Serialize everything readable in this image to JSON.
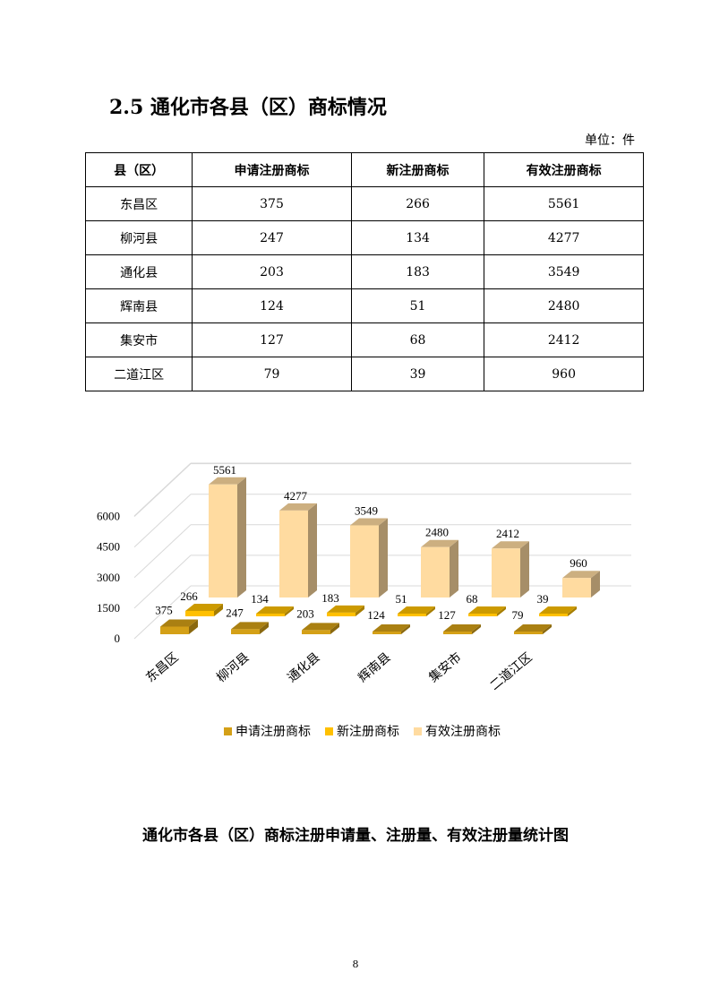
{
  "title": "2.5  通化市各县（区）商标情况",
  "unit": "单位：件",
  "table": {
    "headers": [
      "县（区）",
      "申请注册商标",
      "新注册商标",
      "有效注册商标"
    ],
    "rows": [
      [
        "东昌区",
        "375",
        "266",
        "5561"
      ],
      [
        "柳河县",
        "247",
        "134",
        "4277"
      ],
      [
        "通化县",
        "203",
        "183",
        "3549"
      ],
      [
        "辉南县",
        "124",
        "51",
        "2480"
      ],
      [
        "集安市",
        "127",
        "68",
        "2412"
      ],
      [
        "二道江区",
        "79",
        "39",
        "960"
      ]
    ]
  },
  "chart_data": {
    "type": "bar",
    "subtype": "3d-clustered-column",
    "categories": [
      "东昌区",
      "柳河县",
      "通化县",
      "辉南县",
      "集安市",
      "二道江区"
    ],
    "series": [
      {
        "name": "申请注册商标",
        "values": [
          375,
          247,
          203,
          124,
          127,
          79
        ],
        "color": "#D4A017"
      },
      {
        "name": "新注册商标",
        "values": [
          266,
          134,
          183,
          51,
          68,
          39
        ],
        "color": "#FFC000"
      },
      {
        "name": "有效注册商标",
        "values": [
          5561,
          4277,
          3549,
          2480,
          2412,
          960
        ],
        "color": "#FFDBA0"
      }
    ],
    "yticks": [
      "0",
      "1500",
      "3000",
      "4500",
      "6000"
    ],
    "ylim": [
      0,
      7500
    ],
    "grid": true,
    "legend": "bottom"
  },
  "caption": "通化市各县（区）商标注册申请量、注册量、有效注册量统计图",
  "page_number": "8"
}
